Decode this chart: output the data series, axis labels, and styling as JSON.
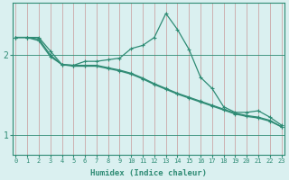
{
  "xlabel": "Humidex (Indice chaleur)",
  "bg_color": "#daf0f0",
  "line_color": "#2e8b74",
  "x_ticks": [
    0,
    1,
    2,
    3,
    4,
    5,
    6,
    7,
    8,
    9,
    10,
    11,
    12,
    13,
    14,
    15,
    16,
    17,
    18,
    19,
    20,
    21,
    22,
    23
  ],
  "y_ticks": [
    1,
    2
  ],
  "ylim": [
    0.75,
    2.65
  ],
  "xlim": [
    -0.3,
    23.3
  ],
  "series_peak": [
    2.22,
    2.22,
    2.22,
    2.05,
    1.88,
    1.87,
    1.92,
    1.92,
    1.94,
    1.96,
    2.08,
    2.12,
    2.22,
    2.52,
    2.32,
    2.07,
    1.72,
    1.58,
    1.35,
    1.28,
    1.28,
    1.3,
    1.22,
    1.12
  ],
  "series_diag1": [
    2.22,
    2.22,
    2.18,
    1.98,
    1.88,
    1.86,
    1.86,
    1.86,
    1.83,
    1.8,
    1.76,
    1.7,
    1.63,
    1.57,
    1.51,
    1.46,
    1.41,
    1.36,
    1.31,
    1.26,
    1.23,
    1.21,
    1.17,
    1.1
  ],
  "series_diag2": [
    2.22,
    2.22,
    2.2,
    2.0,
    1.88,
    1.87,
    1.87,
    1.87,
    1.84,
    1.81,
    1.77,
    1.71,
    1.64,
    1.58,
    1.52,
    1.47,
    1.42,
    1.37,
    1.32,
    1.27,
    1.24,
    1.22,
    1.18,
    1.1
  ]
}
